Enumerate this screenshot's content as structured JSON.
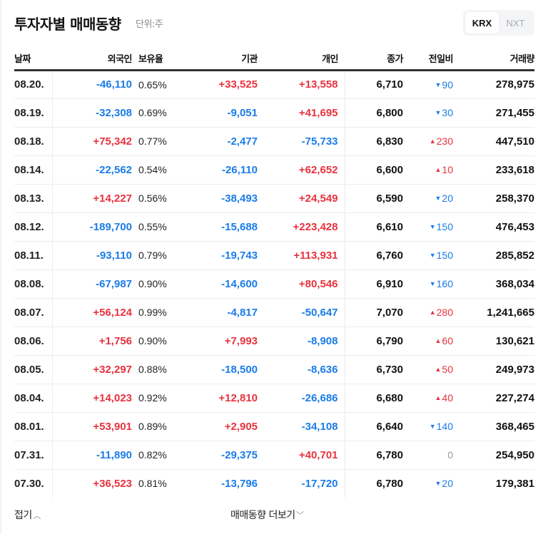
{
  "header": {
    "title": "투자자별 매매동향",
    "unit": "단위:주",
    "toggle": [
      {
        "label": "KRX",
        "active": true
      },
      {
        "label": "NXT",
        "active": false
      }
    ]
  },
  "table": {
    "columns": [
      "날짜",
      "외국인",
      "보유율",
      "기관",
      "개인",
      "종가",
      "전일비",
      "거래량"
    ],
    "rows": [
      {
        "date": "08.20.",
        "foreign": "-46,110",
        "ownership": "0.65%",
        "institution": "+33,525",
        "individual": "+13,558",
        "close": "6,710",
        "diff_dir": "down",
        "diff": "90",
        "volume": "278,975"
      },
      {
        "date": "08.19.",
        "foreign": "-32,308",
        "ownership": "0.69%",
        "institution": "-9,051",
        "individual": "+41,695",
        "close": "6,800",
        "diff_dir": "down",
        "diff": "30",
        "volume": "271,455"
      },
      {
        "date": "08.18.",
        "foreign": "+75,342",
        "ownership": "0.77%",
        "institution": "-2,477",
        "individual": "-75,733",
        "close": "6,830",
        "diff_dir": "up",
        "diff": "230",
        "volume": "447,510"
      },
      {
        "date": "08.14.",
        "foreign": "-22,562",
        "ownership": "0.54%",
        "institution": "-26,110",
        "individual": "+62,652",
        "close": "6,600",
        "diff_dir": "up",
        "diff": "10",
        "volume": "233,618"
      },
      {
        "date": "08.13.",
        "foreign": "+14,227",
        "ownership": "0.56%",
        "institution": "-38,493",
        "individual": "+24,549",
        "close": "6,590",
        "diff_dir": "down",
        "diff": "20",
        "volume": "258,370"
      },
      {
        "date": "08.12.",
        "foreign": "-189,700",
        "ownership": "0.55%",
        "institution": "-15,688",
        "individual": "+223,428",
        "close": "6,610",
        "diff_dir": "down",
        "diff": "150",
        "volume": "476,453"
      },
      {
        "date": "08.11.",
        "foreign": "-93,110",
        "ownership": "0.79%",
        "institution": "-19,743",
        "individual": "+113,931",
        "close": "6,760",
        "diff_dir": "down",
        "diff": "150",
        "volume": "285,852"
      },
      {
        "date": "08.08.",
        "foreign": "-67,987",
        "ownership": "0.90%",
        "institution": "-14,600",
        "individual": "+80,546",
        "close": "6,910",
        "diff_dir": "down",
        "diff": "160",
        "volume": "368,034"
      },
      {
        "date": "08.07.",
        "foreign": "+56,124",
        "ownership": "0.99%",
        "institution": "-4,817",
        "individual": "-50,647",
        "close": "7,070",
        "diff_dir": "up",
        "diff": "280",
        "volume": "1,241,665"
      },
      {
        "date": "08.06.",
        "foreign": "+1,756",
        "ownership": "0.90%",
        "institution": "+7,993",
        "individual": "-8,908",
        "close": "6,790",
        "diff_dir": "up",
        "diff": "60",
        "volume": "130,621"
      },
      {
        "date": "08.05.",
        "foreign": "+32,297",
        "ownership": "0.88%",
        "institution": "-18,500",
        "individual": "-8,636",
        "close": "6,730",
        "diff_dir": "up",
        "diff": "50",
        "volume": "249,973"
      },
      {
        "date": "08.04.",
        "foreign": "+14,023",
        "ownership": "0.92%",
        "institution": "+12,810",
        "individual": "-26,686",
        "close": "6,680",
        "diff_dir": "up",
        "diff": "40",
        "volume": "227,274"
      },
      {
        "date": "08.01.",
        "foreign": "+53,901",
        "ownership": "0.89%",
        "institution": "+2,905",
        "individual": "-34,108",
        "close": "6,640",
        "diff_dir": "down",
        "diff": "140",
        "volume": "368,465"
      },
      {
        "date": "07.31.",
        "foreign": "-11,890",
        "ownership": "0.82%",
        "institution": "-29,375",
        "individual": "+40,701",
        "close": "6,780",
        "diff_dir": "flat",
        "diff": "0",
        "volume": "254,950"
      },
      {
        "date": "07.30.",
        "foreign": "+36,523",
        "ownership": "0.81%",
        "institution": "-13,796",
        "individual": "-17,720",
        "close": "6,780",
        "diff_dir": "down",
        "diff": "20",
        "volume": "179,381"
      }
    ]
  },
  "footer": {
    "fold_label": "접기",
    "fold_icon": "chevron-up-icon",
    "more_label": "매매동향 더보기",
    "more_icon": "chevron-down-icon"
  },
  "colors": {
    "up": "#e8323d",
    "down": "#1a7ce8",
    "flat": "#999999"
  }
}
